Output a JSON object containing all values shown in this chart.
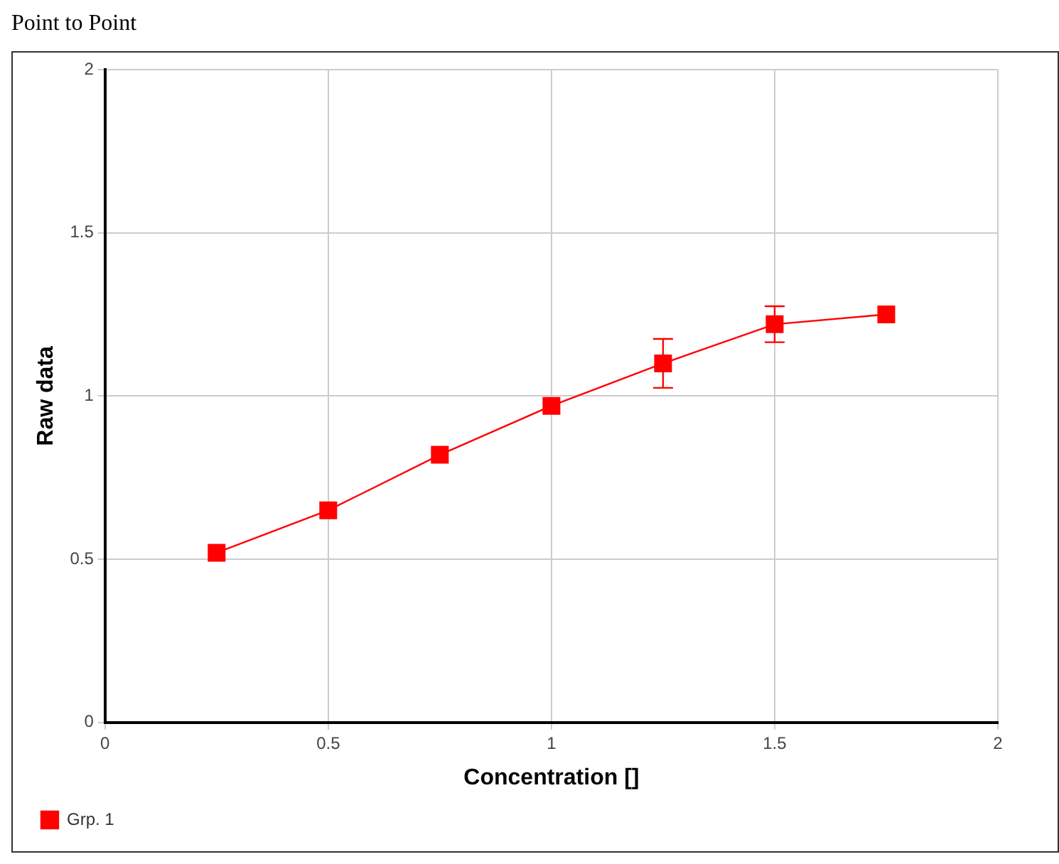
{
  "chart_data": {
    "type": "line",
    "title": "Point to Point",
    "xlabel": "Concentration []",
    "ylabel": "Raw data",
    "x": [
      0.25,
      0.5,
      0.75,
      1,
      1.25,
      1.5,
      1.75
    ],
    "series": [
      {
        "name": "Grp. 1",
        "color": "#ff0000",
        "values": [
          0.52,
          0.65,
          0.82,
          0.97,
          1.1,
          1.22,
          1.25
        ],
        "errors": [
          null,
          null,
          null,
          null,
          0.075,
          0.055,
          null
        ]
      }
    ],
    "xlim": [
      0,
      2
    ],
    "xticks": [
      0,
      0.5,
      1,
      1.5,
      2
    ],
    "ylim": [
      0,
      2
    ],
    "yticks": [
      0,
      0.5,
      1,
      1.5,
      2
    ],
    "grid": true,
    "legend": "bottom left",
    "marker": "square",
    "line_style": "solid"
  }
}
